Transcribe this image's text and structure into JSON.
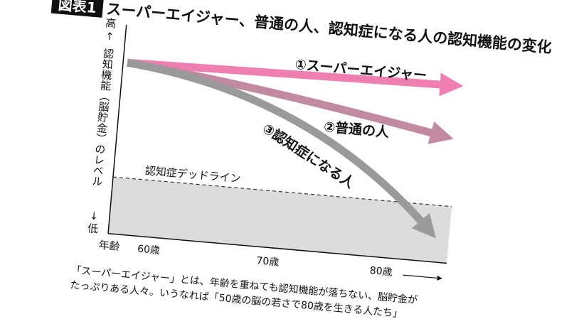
{
  "figure_label": "図表1",
  "title": "スーパーエイジャー、普通の人、認知症になる人の認知機能の変化",
  "y_axis": {
    "high": "高",
    "label": "認知機能（脳貯金）のレベル",
    "low": "低"
  },
  "x_axis": {
    "label": "年齢",
    "ticks": [
      "60歳",
      "70歳",
      "80歳"
    ]
  },
  "curves": [
    {
      "label": "①スーパーエイジャー"
    },
    {
      "label": "②普通の人"
    },
    {
      "label": "③認知症になる人"
    }
  ],
  "deadline": "認知症デッドライン",
  "caption": [
    "「スーパーエイジャー」とは、年齢を重ねても認知機能が落ちない、脳貯金が",
    "たっぷりある人々。いうなれば「50歳の脳の若さで80歳を生きる人たち」"
  ]
}
